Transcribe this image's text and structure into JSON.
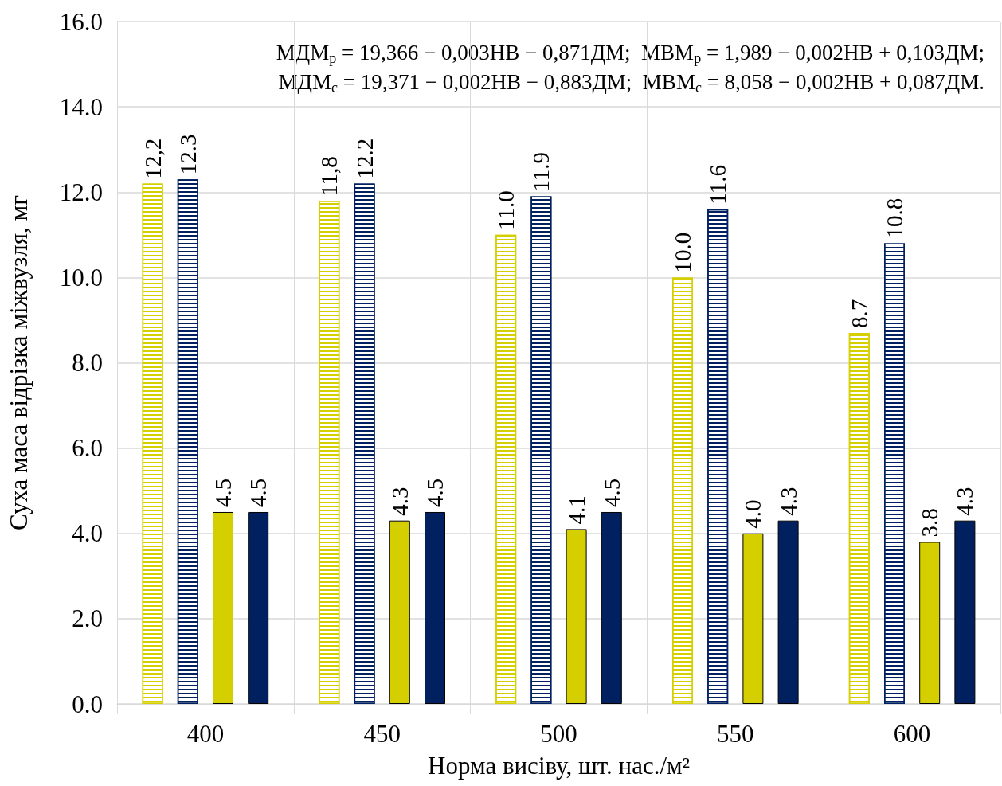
{
  "chart_data": {
    "type": "bar",
    "xlabel": "Норма висіву, шт. нас./м²",
    "ylabel": "Суха маса відрізка міжвузля, мг",
    "categories": [
      "400",
      "450",
      "500",
      "550",
      "600"
    ],
    "ylim": [
      0,
      16
    ],
    "yticks": [
      {
        "value": 0,
        "label": "0.0"
      },
      {
        "value": 2,
        "label": "2.0"
      },
      {
        "value": 4,
        "label": "4.0"
      },
      {
        "value": 6,
        "label": "6.0"
      },
      {
        "value": 8,
        "label": "8.0"
      },
      {
        "value": 10,
        "label": "10.0"
      },
      {
        "value": 12,
        "label": "12.0"
      },
      {
        "value": 14,
        "label": "14.0"
      },
      {
        "value": 16,
        "label": "16.0"
      }
    ],
    "grid": true,
    "series": [
      {
        "color": "#d6cf00",
        "values": [
          12.2,
          11.8,
          11.0,
          10.0,
          8.7
        ],
        "value_labels": [
          "12,2",
          "11,8",
          "11.0",
          "10.0",
          "8.7"
        ]
      },
      {
        "color": "#002060",
        "values": [
          12.3,
          12.2,
          11.9,
          11.6,
          10.8
        ],
        "value_labels": [
          "12.3",
          "12.2",
          "11.9",
          "11.6",
          "10.8"
        ]
      },
      {
        "color": "#d6cf00",
        "values": [
          4.5,
          4.3,
          4.1,
          4.0,
          3.8
        ],
        "value_labels": [
          "4.5",
          "4.3",
          "4.1",
          "4.0",
          "3.8"
        ]
      },
      {
        "color": "#002060",
        "values": [
          4.5,
          4.5,
          4.5,
          4.3,
          4.3
        ],
        "value_labels": [
          "4.5",
          "4.5",
          "4.5",
          "4.3",
          "4.3"
        ]
      }
    ],
    "annotations": [
      "МДМ$_{р}$ = 19,366 − 0,003НВ − 0,871ДМ;  МВМ$_{р}$ = 1,989 − 0,002НВ + 0,103ДМ;",
      "МДМ$_{с}$ = 19,371 − 0,002НВ − 0,883ДМ;  МВМ$_{с}$ = 8,058 − 0,002НВ + 0,087ДМ."
    ]
  }
}
